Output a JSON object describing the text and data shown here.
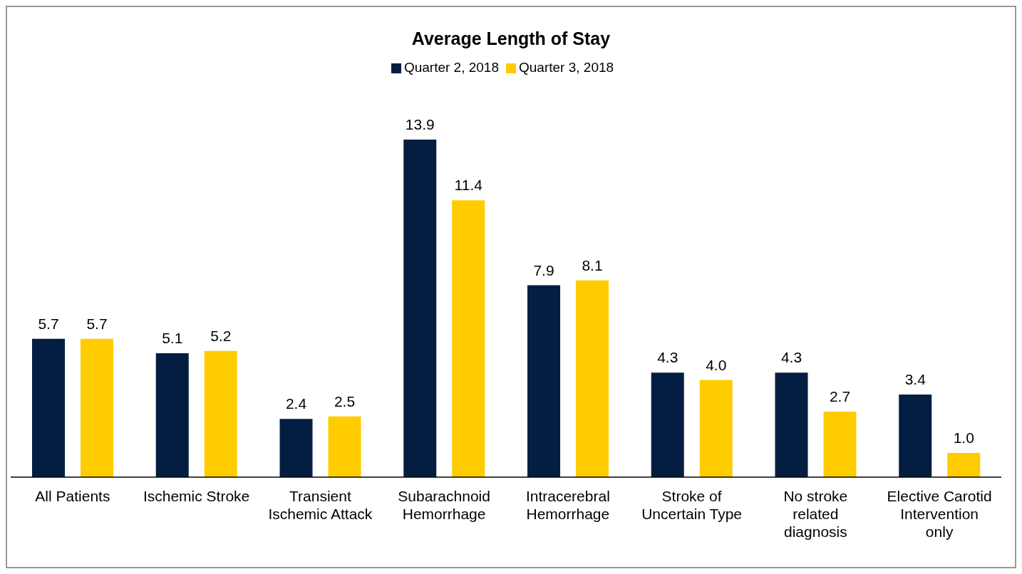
{
  "chart_data": {
    "type": "bar",
    "title": "Average Length of Stay",
    "categories": [
      "All Patients",
      "Ischemic Stroke",
      "Transient Ischemic Attack",
      "Subarachnoid Hemorrhage",
      "Intracerebral Hemorrhage",
      "Stroke of Uncertain Type",
      "No stroke related diagnosis",
      "Elective Carotid Intervention only"
    ],
    "series": [
      {
        "name": "Quarter 2, 2018",
        "color": "#041e42",
        "values": [
          5.7,
          5.1,
          2.4,
          13.9,
          7.9,
          4.3,
          4.3,
          3.4
        ],
        "value_labels": [
          "5.7",
          "5.1",
          "2.4",
          "13.9",
          "7.9",
          "4.3",
          "4.3",
          "3.4"
        ]
      },
      {
        "name": "Quarter 3, 2018",
        "color": "#ffcc00",
        "values": [
          5.7,
          5.2,
          2.5,
          11.4,
          8.1,
          4,
          2.7,
          1
        ],
        "value_labels": [
          "5.7",
          "5.2",
          "2.5",
          "11.4",
          "8.1",
          "4.0",
          "2.7",
          "1.0"
        ]
      }
    ],
    "tick_labels": "x",
    "legend": "top"
  }
}
